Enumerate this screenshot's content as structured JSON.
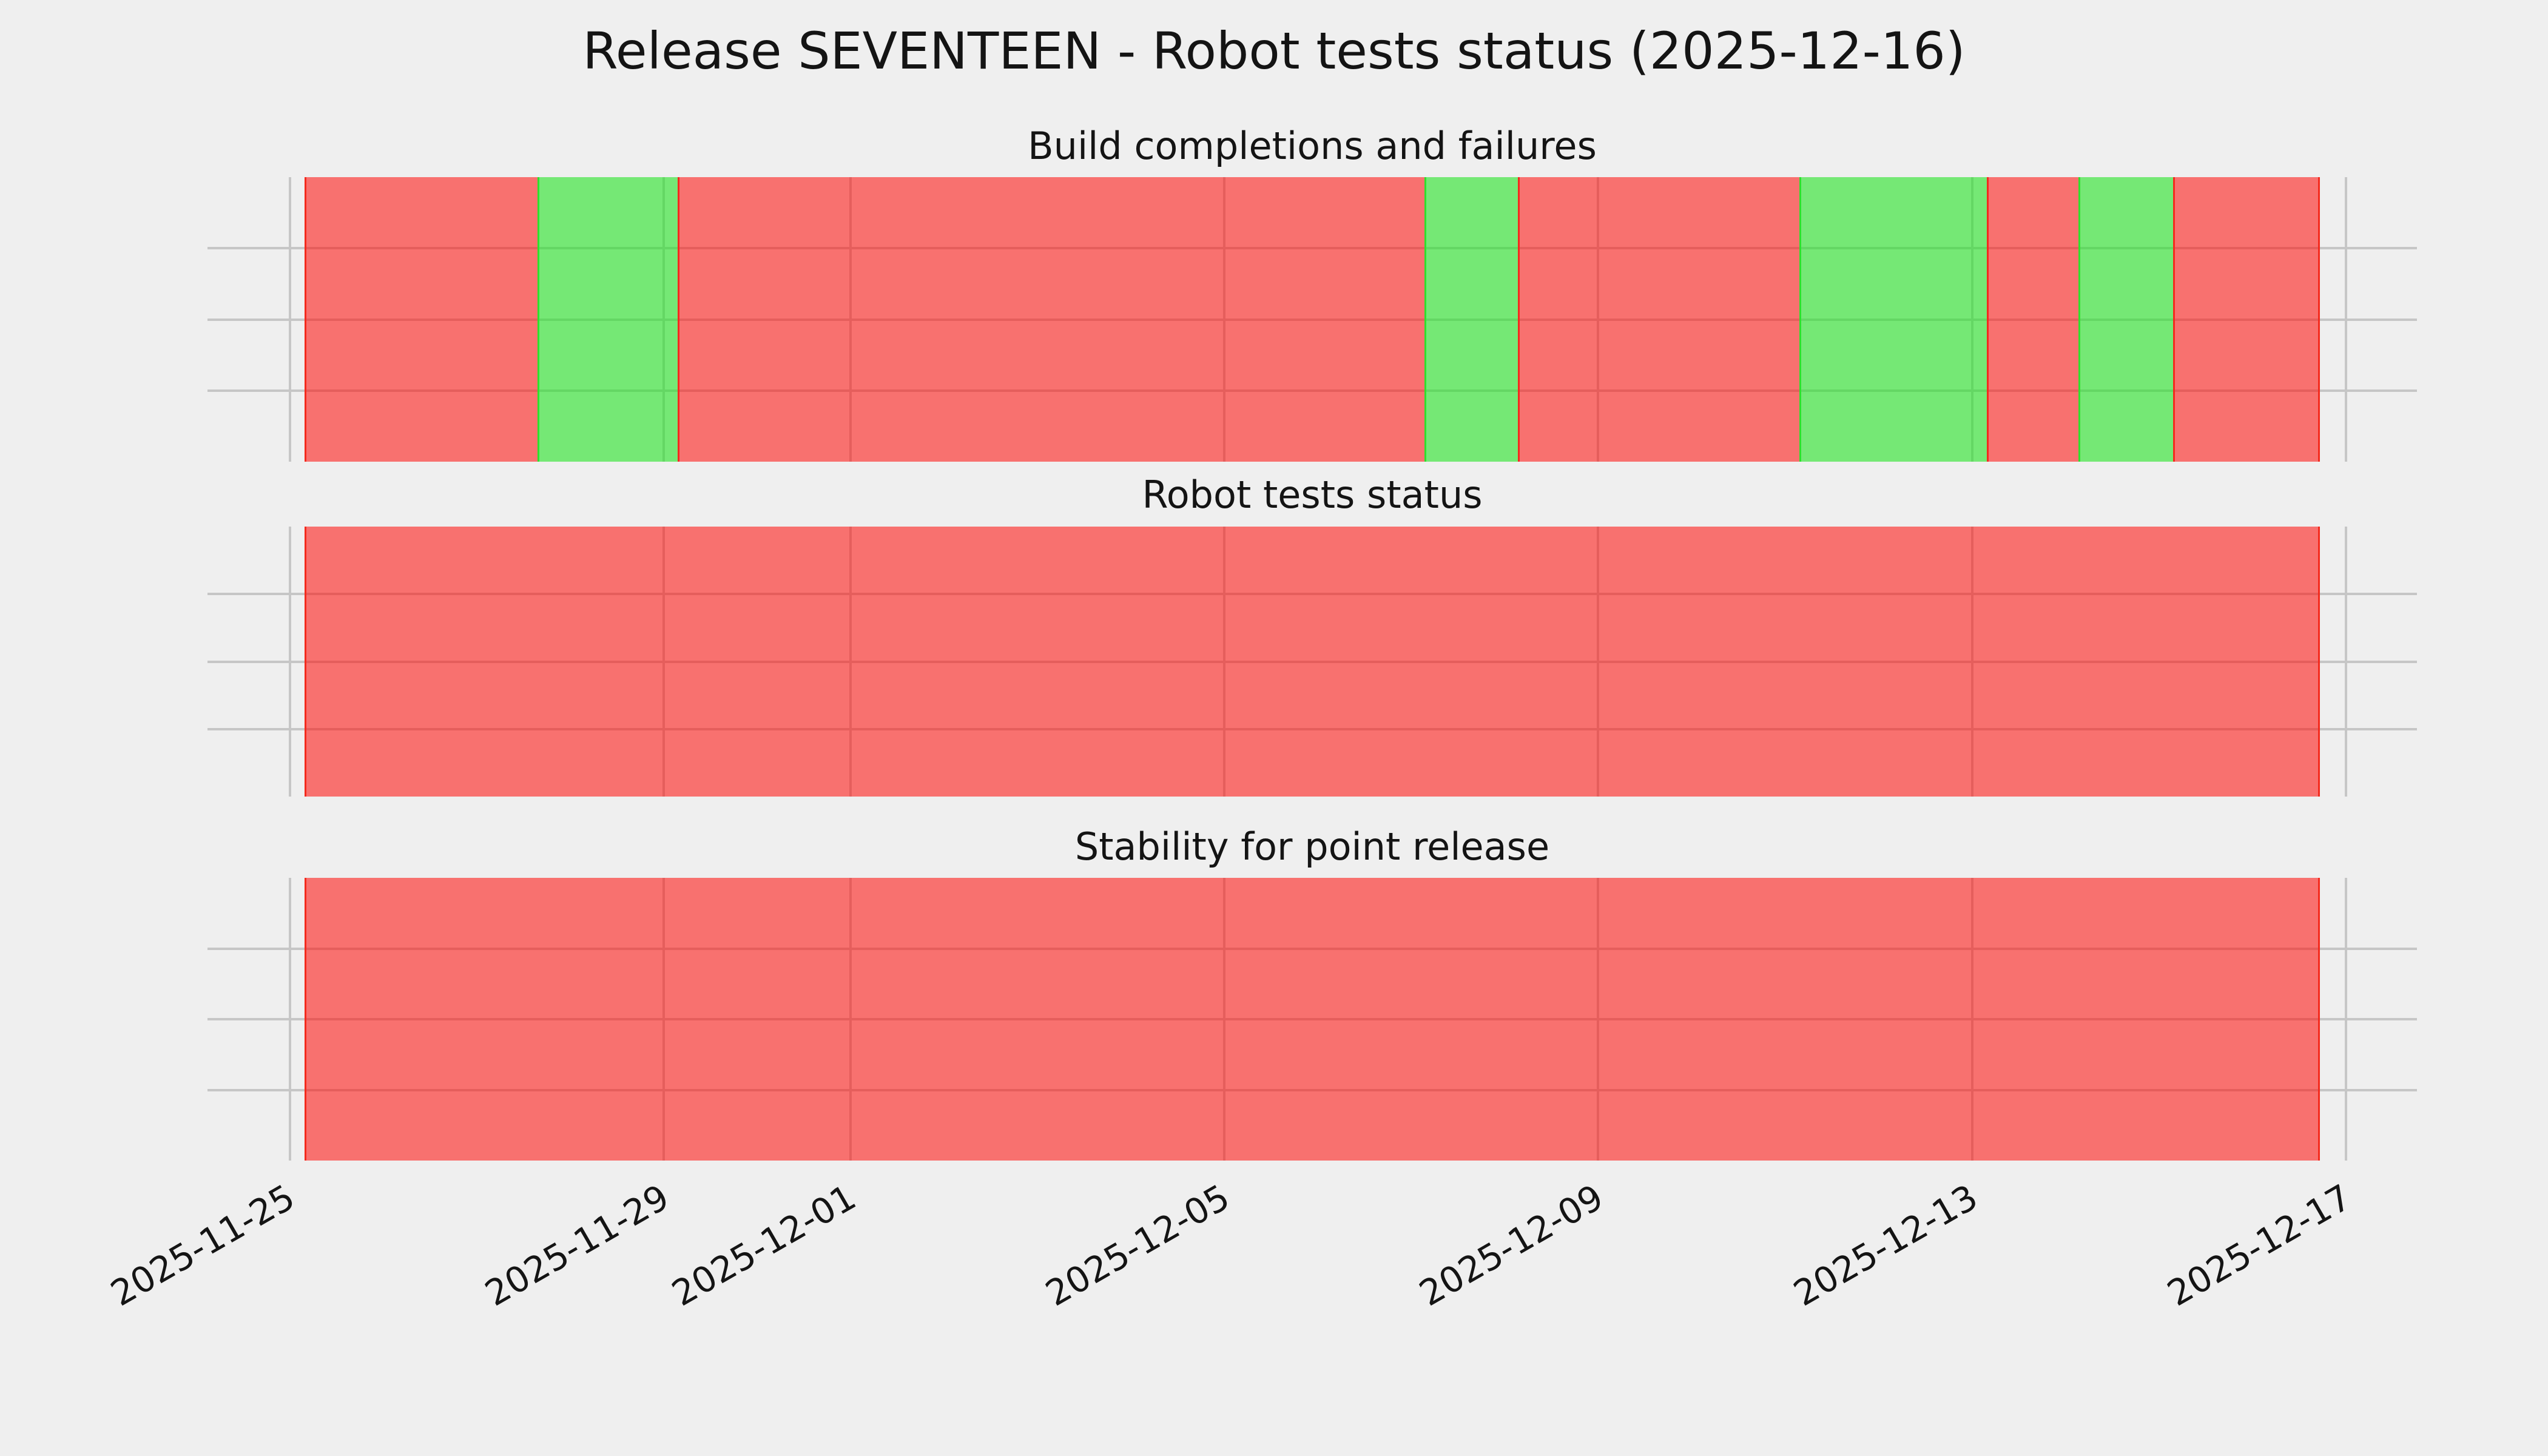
{
  "figure": {
    "suptitle": "Release SEVENTEEN - Robot tests status (2025-12-16)",
    "background": "#efefef"
  },
  "colors": {
    "background": "#efefef",
    "grid": "#c6c6c6",
    "text": "#141414",
    "success_fill": "rgba(30,228,30,0.58)",
    "success_edge": "#2ee02e",
    "failure_fill": "rgba(255,10,6,0.55)",
    "failure_edge": "#f42a1d"
  },
  "x_axis": {
    "origin_date": "2025-11-25",
    "xlim_day": [
      -0.88,
      22.76
    ],
    "grid_on": true,
    "ticks": [
      {
        "label": "2025-11-25",
        "day": 0
      },
      {
        "label": "2025-11-29",
        "day": 4
      },
      {
        "label": "2025-12-01",
        "day": 6
      },
      {
        "label": "2025-12-05",
        "day": 10
      },
      {
        "label": "2025-12-09",
        "day": 14
      },
      {
        "label": "2025-12-13",
        "day": 18
      },
      {
        "label": "2025-12-17",
        "day": 22
      }
    ]
  },
  "chart_data": [
    {
      "type": "bar",
      "variant": "status_timeline",
      "title": "Build completions and failures",
      "ylim": [
        0,
        1
      ],
      "legend": "none",
      "segments": [
        {
          "status": "failure",
          "start_day": 0.16,
          "end_day": 2.65
        },
        {
          "status": "success",
          "start_day": 2.65,
          "end_day": 4.15
        },
        {
          "status": "failure",
          "start_day": 4.15,
          "end_day": 12.14
        },
        {
          "status": "success",
          "start_day": 12.14,
          "end_day": 13.14
        },
        {
          "status": "failure",
          "start_day": 13.14,
          "end_day": 16.15
        },
        {
          "status": "success",
          "start_day": 16.15,
          "end_day": 18.16
        },
        {
          "status": "failure",
          "start_day": 18.16,
          "end_day": 19.14
        },
        {
          "status": "success",
          "start_day": 19.14,
          "end_day": 20.15
        },
        {
          "status": "failure",
          "start_day": 20.15,
          "end_day": 21.72
        }
      ]
    },
    {
      "type": "bar",
      "variant": "status_timeline",
      "title": "Robot tests status",
      "ylim": [
        0,
        1
      ],
      "legend": "none",
      "segments": [
        {
          "status": "failure",
          "start_day": 0.16,
          "end_day": 21.72
        }
      ]
    },
    {
      "type": "bar",
      "variant": "status_timeline",
      "title": "Stability for point release",
      "ylim": [
        0,
        1
      ],
      "legend": "none",
      "segments": [
        {
          "status": "failure",
          "start_day": 0.16,
          "end_day": 21.72
        }
      ]
    }
  ]
}
